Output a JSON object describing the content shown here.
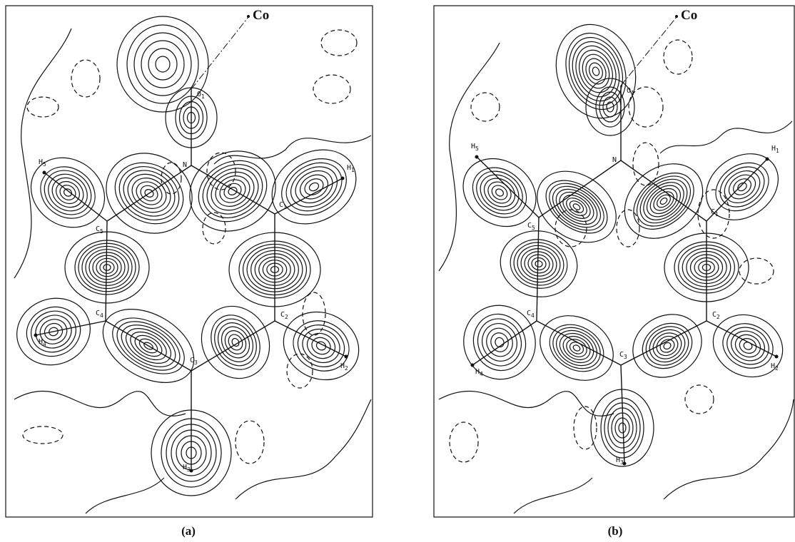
{
  "panels": [
    {
      "caption": "(a)",
      "atoms": [
        {
          "symbol": "Co"
        },
        {
          "symbol": "O",
          "index": "1"
        },
        {
          "symbol": "N"
        },
        {
          "symbol": "C",
          "index": "1"
        },
        {
          "symbol": "C",
          "index": "2"
        },
        {
          "symbol": "C",
          "index": "3"
        },
        {
          "symbol": "C",
          "index": "4"
        },
        {
          "symbol": "C",
          "index": "5"
        },
        {
          "symbol": "H",
          "index": "1"
        },
        {
          "symbol": "H",
          "index": "2"
        },
        {
          "symbol": "H",
          "index": "3"
        },
        {
          "symbol": "H",
          "index": "4"
        },
        {
          "symbol": "H",
          "index": "5"
        }
      ]
    },
    {
      "caption": "(b)",
      "atoms": [
        {
          "symbol": "Co"
        },
        {
          "symbol": "O",
          "index": "1"
        },
        {
          "symbol": "N"
        },
        {
          "symbol": "C",
          "index": "1"
        },
        {
          "symbol": "C",
          "index": "2"
        },
        {
          "symbol": "C",
          "index": "3"
        },
        {
          "symbol": "C",
          "index": "4"
        },
        {
          "symbol": "C",
          "index": "5"
        },
        {
          "symbol": "H",
          "index": "1"
        },
        {
          "symbol": "H",
          "index": "2"
        },
        {
          "symbol": "H",
          "index": "3"
        },
        {
          "symbol": "H",
          "index": "4"
        },
        {
          "symbol": "H",
          "index": "5"
        }
      ]
    }
  ]
}
